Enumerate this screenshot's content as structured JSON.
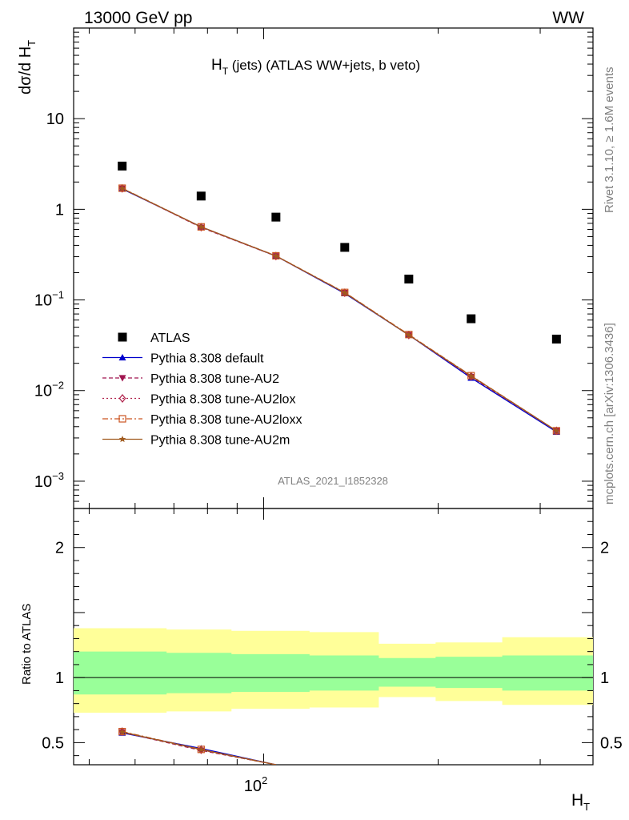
{
  "header": {
    "left": "13000 GeV pp",
    "right": "WW"
  },
  "side_text": {
    "rivet": "Rivet 3.1.10, ≥ 1.6M events",
    "mcplots": "mcplots.cern.ch [arXiv:1306.3436]"
  },
  "chart_data": [
    {
      "type": "scatter",
      "title_main": "H",
      "title_sub": "T",
      "title_rest": " (jets) (ATLAS WW+jets, b veto)",
      "ylabel_main": "dσ/d H",
      "ylabel_sub": "T",
      "xlabel_main": "H",
      "xlabel_sub": "T",
      "watermark": "ATLAS_2021_I1852328",
      "yscale": "log",
      "xscale": "log",
      "xlim": [
        47,
        370
      ],
      "ylim": [
        0.0005,
        100
      ],
      "yticks": [
        {
          "value": 10,
          "label": "10"
        },
        {
          "value": 1,
          "label": "1"
        },
        {
          "value": 0.1,
          "base": "10",
          "exp": "−1"
        },
        {
          "value": 0.01,
          "base": "10",
          "exp": "−2"
        },
        {
          "value": 0.001,
          "base": "10",
          "exp": "−3"
        }
      ],
      "x": [
        57,
        78,
        105,
        138,
        178,
        228,
        320
      ],
      "series": [
        {
          "name": "ATLAS",
          "color": "#000000",
          "marker": "square",
          "dash": "none",
          "values": [
            3.0,
            1.4,
            0.82,
            0.38,
            0.17,
            0.062,
            0.037
          ]
        },
        {
          "name": "Pythia 8.308 default",
          "color": "#0000cc",
          "marker": "triangle-up",
          "dash": "solid",
          "values": [
            1.68,
            0.64,
            0.305,
            0.118,
            0.041,
            0.0138,
            0.0035
          ]
        },
        {
          "name": "Pythia 8.308 tune-AU2",
          "color": "#a0154f",
          "marker": "triangle-down",
          "dash": "dashed",
          "values": [
            1.7,
            0.63,
            0.305,
            0.12,
            0.041,
            0.0142,
            0.0036
          ]
        },
        {
          "name": "Pythia 8.308 tune-AU2lox",
          "color": "#b0204a",
          "marker": "diamond-open",
          "dash": "dotted",
          "values": [
            1.7,
            0.635,
            0.305,
            0.12,
            0.041,
            0.0144,
            0.0036
          ]
        },
        {
          "name": "Pythia 8.308 tune-AU2loxx",
          "color": "#cc5522",
          "marker": "square-open",
          "dash": "dashdot",
          "values": [
            1.71,
            0.64,
            0.307,
            0.121,
            0.0415,
            0.0146,
            0.0036
          ]
        },
        {
          "name": "Pythia 8.308 tune-AU2m",
          "color": "#a05a1e",
          "marker": "star",
          "dash": "solid",
          "values": [
            1.7,
            0.64,
            0.306,
            0.12,
            0.041,
            0.0145,
            0.0036
          ]
        }
      ]
    },
    {
      "type": "line",
      "ylabel": "Ratio to ATLAS",
      "ylim": [
        0.33,
        2.3
      ],
      "yticks": [
        {
          "value": 2,
          "label": "2"
        },
        {
          "value": 1,
          "label": "1"
        },
        {
          "value": 0.5,
          "label": "0.5"
        }
      ],
      "xticks": [
        {
          "value": 100,
          "base": "10",
          "exp": "2"
        }
      ],
      "bin_edges": [
        47,
        68,
        88,
        120,
        158,
        198,
        258,
        370
      ],
      "band_stat_sys": {
        "lower": [
          0.87,
          0.88,
          0.89,
          0.9,
          0.93,
          0.92,
          0.9,
          0.9
        ],
        "upper": [
          1.2,
          1.19,
          1.18,
          1.17,
          1.15,
          1.16,
          1.17,
          1.17
        ]
      },
      "band_total": {
        "lower": [
          0.73,
          0.74,
          0.76,
          0.77,
          0.85,
          0.82,
          0.79,
          0.78
        ],
        "upper": [
          1.38,
          1.37,
          1.36,
          1.35,
          1.26,
          1.27,
          1.31,
          1.32
        ]
      },
      "x": [
        57,
        78,
        105
      ],
      "series": [
        {
          "name": "Pythia 8.308 default",
          "color": "#0000cc",
          "marker": "triangle-up",
          "dash": "solid",
          "values": [
            0.575,
            0.455,
            0.33
          ]
        },
        {
          "name": "Pythia 8.308 tune-AU2",
          "color": "#a0154f",
          "marker": "triangle-down",
          "dash": "dashed",
          "values": [
            0.58,
            0.44,
            0.33
          ]
        },
        {
          "name": "Pythia 8.308 tune-AU2lox",
          "color": "#b0204a",
          "marker": "diamond-open",
          "dash": "dotted",
          "values": [
            0.585,
            0.445,
            0.33
          ]
        },
        {
          "name": "Pythia 8.308 tune-AU2loxx",
          "color": "#cc5522",
          "marker": "square-open",
          "dash": "dashdot",
          "values": [
            0.585,
            0.448,
            0.33
          ]
        },
        {
          "name": "Pythia 8.308 tune-AU2m",
          "color": "#a05a1e",
          "marker": "star",
          "dash": "solid",
          "values": [
            0.582,
            0.446,
            0.33
          ]
        }
      ]
    }
  ]
}
